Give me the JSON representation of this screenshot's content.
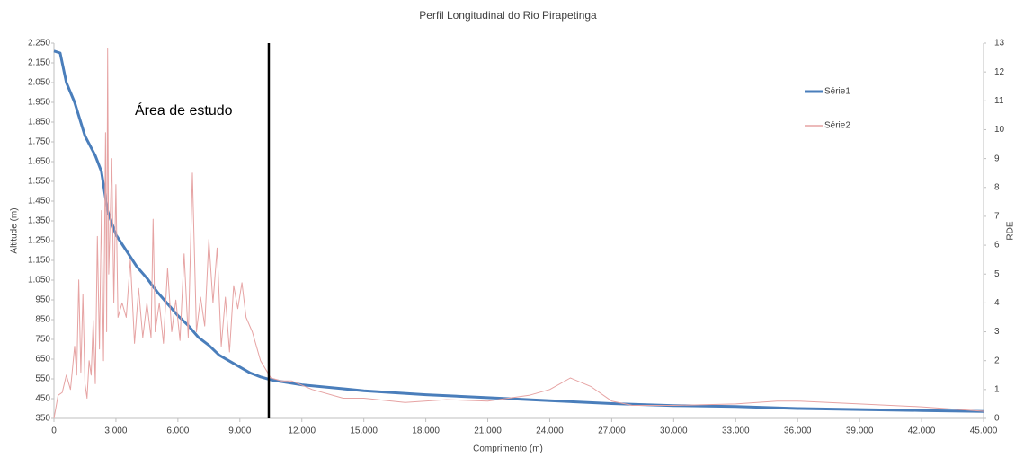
{
  "chart_data": {
    "type": "line",
    "title": "Perfil Longitudinal do Rio Pirapetinga",
    "x_label": "Comprimento (m)",
    "y_label": "Altitude (m)",
    "y2_label": "RDE",
    "annotation": "Área de estudo",
    "vline_x": 10400,
    "legend": "upper right",
    "grid": false,
    "xlim": [
      0,
      45000
    ],
    "xticks": [
      0,
      {
        "value": 3000,
        "label": "3.000"
      },
      {
        "value": 6000,
        "label": "6.000"
      },
      {
        "value": 9000,
        "label": "9.000"
      },
      {
        "value": 12000,
        "label": "12.000"
      },
      {
        "value": 15000,
        "label": "15.000"
      },
      {
        "value": 18000,
        "label": "18.000"
      },
      {
        "value": 21000,
        "label": "21.000"
      },
      {
        "value": 24000,
        "label": "24.000"
      },
      {
        "value": 27000,
        "label": "27.000"
      },
      {
        "value": 30000,
        "label": "30.000"
      },
      {
        "value": 33000,
        "label": "33.000"
      },
      {
        "value": 36000,
        "label": "36.000"
      },
      {
        "value": 39000,
        "label": "39.000"
      },
      {
        "value": 42000,
        "label": "42.000"
      },
      {
        "value": 45000,
        "label": "45.000"
      }
    ],
    "ylim": [
      350,
      2250
    ],
    "yticks": [
      350,
      450,
      550,
      650,
      750,
      850,
      950,
      {
        "value": 1050,
        "label": "1.050"
      },
      {
        "value": 1150,
        "label": "1.150"
      },
      {
        "value": 1250,
        "label": "1.250"
      },
      {
        "value": 1350,
        "label": "1.350"
      },
      {
        "value": 1450,
        "label": "1.450"
      },
      {
        "value": 1550,
        "label": "1.550"
      },
      {
        "value": 1650,
        "label": "1.650"
      },
      {
        "value": 1750,
        "label": "1.750"
      },
      {
        "value": 1850,
        "label": "1.850"
      },
      {
        "value": 1950,
        "label": "1.950"
      },
      {
        "value": 2050,
        "label": "2.050"
      },
      {
        "value": 2150,
        "label": "2.150"
      },
      {
        "value": 2250,
        "label": "2.250"
      }
    ],
    "y2lim": [
      0,
      13
    ],
    "y2ticks": [
      0,
      1,
      2,
      3,
      4,
      5,
      6,
      7,
      8,
      9,
      10,
      11,
      12,
      13
    ],
    "series": [
      {
        "name": "Série1",
        "color": "#4a7ebb",
        "x": [
          0,
          300,
          600,
          1000,
          1500,
          2000,
          2300,
          2600,
          3000,
          3500,
          4000,
          4500,
          5000,
          5500,
          6000,
          6500,
          7000,
          7500,
          8000,
          8500,
          9000,
          9500,
          10000,
          10500,
          12000,
          15000,
          18000,
          21000,
          24000,
          27000,
          30000,
          33000,
          36000,
          39000,
          42000,
          45000
        ],
        "values": [
          2210,
          2200,
          2050,
          1950,
          1780,
          1680,
          1600,
          1400,
          1280,
          1200,
          1120,
          1060,
          990,
          930,
          870,
          820,
          760,
          720,
          670,
          640,
          610,
          580,
          560,
          545,
          520,
          490,
          470,
          455,
          440,
          425,
          415,
          410,
          400,
          395,
          390,
          385
        ]
      },
      {
        "name": "Série2",
        "color": "#e6a3a3",
        "axis": "y2",
        "x": [
          0,
          200,
          400,
          600,
          800,
          1000,
          1100,
          1200,
          1300,
          1400,
          1500,
          1600,
          1700,
          1800,
          1900,
          2000,
          2100,
          2200,
          2300,
          2400,
          2500,
          2550,
          2600,
          2650,
          2700,
          2800,
          2900,
          3000,
          3100,
          3300,
          3500,
          3700,
          3900,
          4100,
          4300,
          4500,
          4700,
          4800,
          4900,
          5100,
          5300,
          5500,
          5700,
          5900,
          6100,
          6300,
          6500,
          6700,
          6900,
          7100,
          7300,
          7500,
          7700,
          7900,
          8100,
          8300,
          8500,
          8700,
          8900,
          9100,
          9300,
          9600,
          10000,
          10500,
          11000,
          11500,
          12500,
          14000,
          15000,
          17000,
          19000,
          21000,
          23000,
          24000,
          24500,
          25000,
          26000,
          27000,
          28000,
          30000,
          33000,
          35000,
          36000,
          39000,
          42000,
          45000
        ],
        "values": [
          0,
          0.8,
          0.9,
          1.5,
          1.0,
          2.5,
          1.5,
          4.8,
          1.6,
          4.3,
          1.2,
          0.7,
          2.0,
          1.5,
          3.4,
          1.2,
          6.3,
          2.4,
          7.2,
          2.0,
          9.9,
          3,
          12.8,
          5,
          6.2,
          9.0,
          4,
          8.1,
          3.5,
          4.0,
          3.5,
          5.5,
          2.6,
          4.5,
          2.8,
          4.0,
          2.8,
          6.9,
          3.0,
          4.0,
          2.6,
          5.2,
          3.0,
          4.1,
          2.7,
          5.7,
          2.8,
          8.5,
          3.0,
          4.2,
          3.2,
          6.2,
          4.0,
          5.9,
          2.5,
          4.2,
          2.3,
          4.6,
          3.8,
          4.7,
          3.5,
          3.0,
          2.0,
          1.4,
          1.3,
          1.3,
          1.0,
          0.7,
          0.7,
          0.55,
          0.65,
          0.6,
          0.8,
          1.0,
          1.2,
          1.4,
          1.1,
          0.6,
          0.45,
          0.45,
          0.5,
          0.6,
          0.6,
          0.5,
          0.4,
          0.25
        ]
      }
    ]
  }
}
